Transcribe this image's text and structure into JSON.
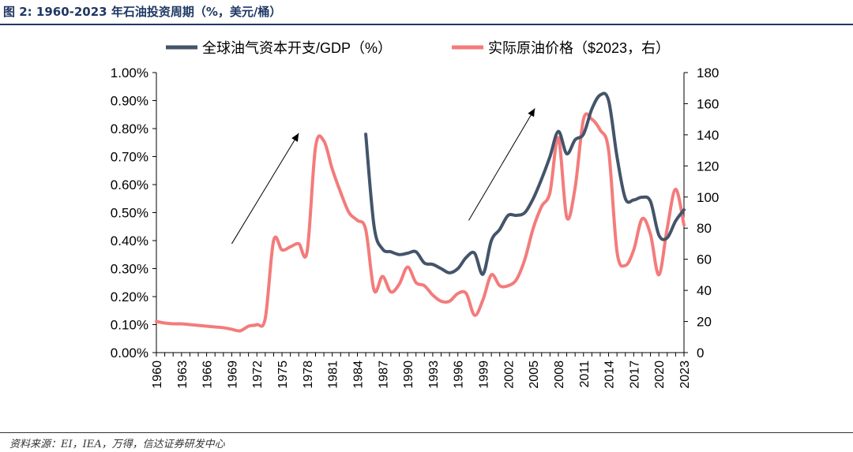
{
  "figure": {
    "title": "图 2:  1960-2023 年石油投资周期（%，美元/桶）",
    "source": "资料来源：EI，IEA，万得，信达证券研发中心"
  },
  "chart_data": {
    "type": "line",
    "title": "",
    "legend_position": "top",
    "grid": false,
    "x_ticks": [
      "1960",
      "1963",
      "1966",
      "1969",
      "1972",
      "1975",
      "1978",
      "1981",
      "1984",
      "1987",
      "1990",
      "1993",
      "1996",
      "1999",
      "2002",
      "2005",
      "2008",
      "2011",
      "2014",
      "2017",
      "2020",
      "2023"
    ],
    "y_left": {
      "range": [
        0,
        1.0
      ],
      "ticks": [
        0,
        0.1,
        0.2,
        0.3,
        0.4,
        0.5,
        0.6,
        0.7,
        0.8,
        0.9,
        1.0
      ],
      "tick_labels": [
        "0.00%",
        "0.10%",
        "0.20%",
        "0.30%",
        "0.40%",
        "0.50%",
        "0.60%",
        "0.70%",
        "0.80%",
        "0.90%",
        "1.00%"
      ]
    },
    "y_right": {
      "range": [
        0,
        180
      ],
      "ticks": [
        0,
        20,
        40,
        60,
        80,
        100,
        120,
        140,
        160,
        180
      ],
      "tick_labels": [
        "0",
        "20",
        "40",
        "60",
        "80",
        "100",
        "120",
        "140",
        "160",
        "180"
      ]
    },
    "series": [
      {
        "name": "全球油气资本开支/GDP（%）",
        "axis": "left",
        "color": "#44546a",
        "points": [
          [
            1985,
            0.78
          ],
          [
            1986,
            0.45
          ],
          [
            1987,
            0.37
          ],
          [
            1988,
            0.36
          ],
          [
            1989,
            0.35
          ],
          [
            1990,
            0.355
          ],
          [
            1991,
            0.36
          ],
          [
            1992,
            0.32
          ],
          [
            1993,
            0.315
          ],
          [
            1994,
            0.3
          ],
          [
            1995,
            0.285
          ],
          [
            1996,
            0.3
          ],
          [
            1997,
            0.34
          ],
          [
            1998,
            0.355
          ],
          [
            1999,
            0.28
          ],
          [
            2000,
            0.4
          ],
          [
            2001,
            0.44
          ],
          [
            2002,
            0.49
          ],
          [
            2003,
            0.49
          ],
          [
            2004,
            0.5
          ],
          [
            2005,
            0.55
          ],
          [
            2006,
            0.62
          ],
          [
            2007,
            0.7
          ],
          [
            2008,
            0.79
          ],
          [
            2009,
            0.71
          ],
          [
            2010,
            0.76
          ],
          [
            2011,
            0.78
          ],
          [
            2012,
            0.87
          ],
          [
            2013,
            0.92
          ],
          [
            2014,
            0.9
          ],
          [
            2015,
            0.7
          ],
          [
            2016,
            0.55
          ],
          [
            2017,
            0.545
          ],
          [
            2018,
            0.555
          ],
          [
            2019,
            0.54
          ],
          [
            2020,
            0.42
          ],
          [
            2021,
            0.41
          ],
          [
            2022,
            0.47
          ],
          [
            2023,
            0.51
          ]
        ]
      },
      {
        "name": "实际原油价格（$2023，右）",
        "axis": "right",
        "color": "#f47b7b",
        "points": [
          [
            1960,
            20
          ],
          [
            1961,
            19
          ],
          [
            1962,
            18.5
          ],
          [
            1963,
            18.5
          ],
          [
            1964,
            18
          ],
          [
            1965,
            17.5
          ],
          [
            1966,
            17
          ],
          [
            1967,
            16.5
          ],
          [
            1968,
            16
          ],
          [
            1969,
            15
          ],
          [
            1970,
            14
          ],
          [
            1971,
            17
          ],
          [
            1972,
            18
          ],
          [
            1973,
            22
          ],
          [
            1974,
            72
          ],
          [
            1975,
            66
          ],
          [
            1976,
            68
          ],
          [
            1977,
            70
          ],
          [
            1978,
            65
          ],
          [
            1979,
            132
          ],
          [
            1980,
            136
          ],
          [
            1981,
            118
          ],
          [
            1982,
            103
          ],
          [
            1983,
            90
          ],
          [
            1984,
            85
          ],
          [
            1985,
            79
          ],
          [
            1986,
            40
          ],
          [
            1987,
            49
          ],
          [
            1988,
            39
          ],
          [
            1989,
            44
          ],
          [
            1990,
            55
          ],
          [
            1991,
            45
          ],
          [
            1992,
            43
          ],
          [
            1993,
            37
          ],
          [
            1994,
            33
          ],
          [
            1995,
            33
          ],
          [
            1996,
            38
          ],
          [
            1997,
            38
          ],
          [
            1998,
            24
          ],
          [
            1999,
            34
          ],
          [
            2000,
            50
          ],
          [
            2001,
            43
          ],
          [
            2002,
            43
          ],
          [
            2003,
            47
          ],
          [
            2004,
            60
          ],
          [
            2005,
            80
          ],
          [
            2006,
            94
          ],
          [
            2007,
            103
          ],
          [
            2008,
            138
          ],
          [
            2009,
            87
          ],
          [
            2010,
            106
          ],
          [
            2011,
            150
          ],
          [
            2012,
            150
          ],
          [
            2013,
            143
          ],
          [
            2014,
            130
          ],
          [
            2015,
            65
          ],
          [
            2016,
            56
          ],
          [
            2017,
            66
          ],
          [
            2018,
            86
          ],
          [
            2019,
            76
          ],
          [
            2020,
            50
          ],
          [
            2021,
            80
          ],
          [
            2022,
            105
          ],
          [
            2023,
            82
          ]
        ]
      }
    ],
    "annotations": [
      {
        "type": "arrow",
        "from": [
          1969.0,
          70
        ],
        "to": [
          1977.0,
          141
        ]
      },
      {
        "type": "arrow",
        "from": [
          1997.3,
          85
        ],
        "to": [
          2005.2,
          157
        ]
      }
    ]
  }
}
